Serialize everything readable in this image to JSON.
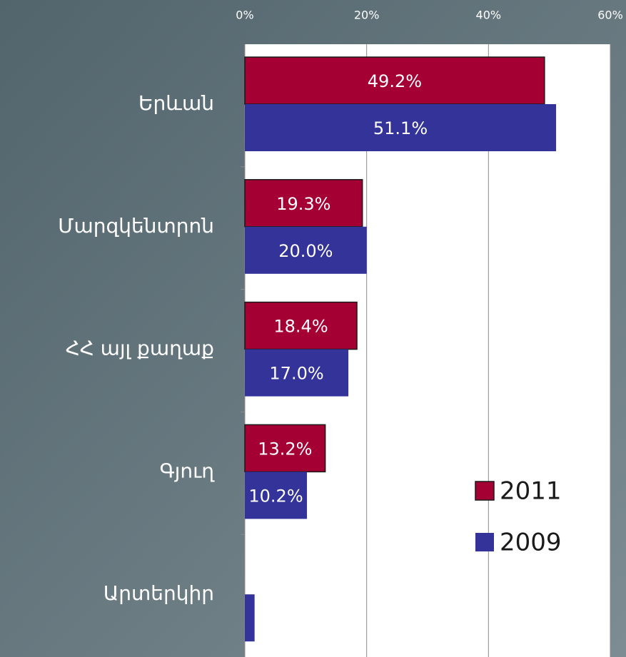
{
  "chart_data": {
    "type": "hbar",
    "categories": [
      "Երևան",
      "Մարզկենտրոն",
      "ՀՀ այլ քաղաք",
      "Գյուղ",
      "Արտերկիր"
    ],
    "series": [
      {
        "name": "2011",
        "color": "#a50034",
        "values": [
          49.2,
          19.3,
          18.4,
          13.2,
          null
        ],
        "value_labels": [
          "49.2%",
          "19.3%",
          "18.4%",
          "13.2%",
          null
        ]
      },
      {
        "name": "2009",
        "color": "#333399",
        "values": [
          51.1,
          20.0,
          17.0,
          10.2,
          1.6
        ],
        "value_labels": [
          "51.1%",
          "20.0%",
          "17.0%",
          "10.2%",
          null
        ]
      }
    ],
    "xlim": [
      0,
      60
    ],
    "xticks": [
      {
        "value": 0,
        "label": "0%"
      },
      {
        "value": 20,
        "label": "20%"
      },
      {
        "value": 40,
        "label": "40%"
      },
      {
        "value": 60,
        "label": "60%"
      }
    ],
    "grid": true,
    "legend": "bottom-right"
  }
}
